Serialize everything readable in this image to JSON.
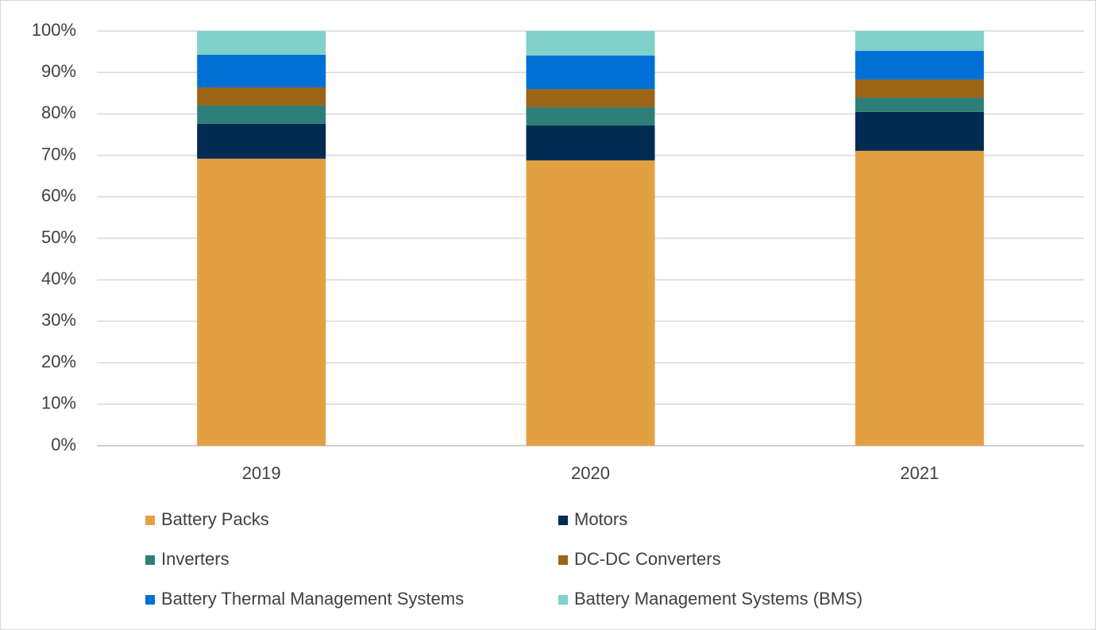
{
  "chart_data": {
    "type": "stacked_bar",
    "categories": [
      "2019",
      "2020",
      "2021"
    ],
    "series": [
      {
        "name": "Battery Packs",
        "color": "#e3a043",
        "values": [
          69.2,
          68.8,
          71.1
        ]
      },
      {
        "name": "Motors",
        "color": "#002b52",
        "values": [
          8.4,
          8.4,
          9.4
        ]
      },
      {
        "name": "Inverters",
        "color": "#2c7f78",
        "values": [
          4.4,
          4.4,
          3.4
        ]
      },
      {
        "name": "DC-DC Converters",
        "color": "#9c6417",
        "values": [
          4.4,
          4.4,
          4.4
        ]
      },
      {
        "name": "Battery Thermal Management Systems",
        "color": "#0070d6",
        "values": [
          7.9,
          8.1,
          6.9
        ]
      },
      {
        "name": "Battery Management Systems (BMS)",
        "color": "#7fd1c9",
        "values": [
          5.7,
          5.9,
          4.8
        ]
      }
    ],
    "ylim": [
      0,
      100
    ],
    "yticks": [
      {
        "value": 0,
        "label": "0%"
      },
      {
        "value": 10,
        "label": "10%"
      },
      {
        "value": 20,
        "label": "20%"
      },
      {
        "value": 30,
        "label": "30%"
      },
      {
        "value": 40,
        "label": "40%"
      },
      {
        "value": 50,
        "label": "50%"
      },
      {
        "value": 60,
        "label": "60%"
      },
      {
        "value": 70,
        "label": "70%"
      },
      {
        "value": 80,
        "label": "80%"
      },
      {
        "value": 90,
        "label": "90%"
      },
      {
        "value": 100,
        "label": "100%"
      }
    ],
    "grid": true,
    "legend": "bottom"
  }
}
